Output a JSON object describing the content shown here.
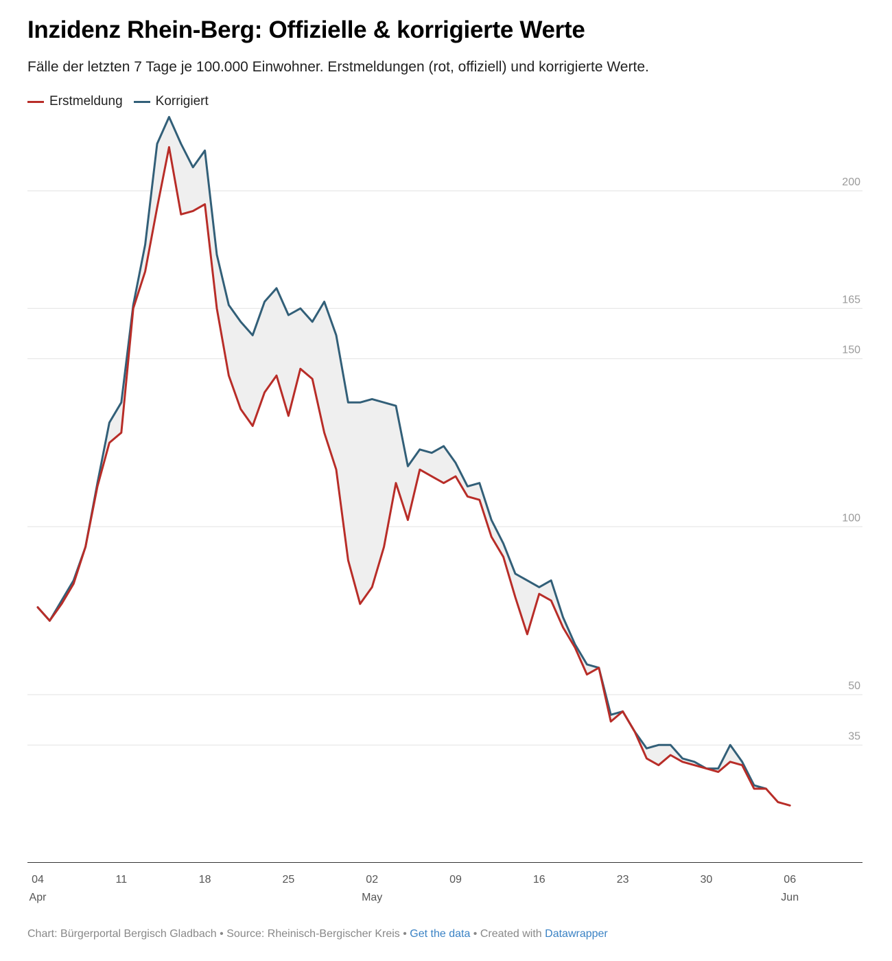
{
  "title": "Inzidenz Rhein-Berg: Offizielle & korrigierte Werte",
  "subtitle": "Fälle der letzten 7 Tage je 100.000 Einwohner. Erstmeldungen (rot, offiziell) und korrigierte Werte.",
  "colors": {
    "erstmeldung": "#b82d28",
    "korrigiert": "#325f78",
    "band": "#efefef",
    "grid": "#e2e2e2",
    "tick_text": "#9a9a9a",
    "axis": "#333333",
    "link": "#3a82c4"
  },
  "footer": {
    "chart_credit": "Chart: Bürgerportal Bergisch Gladbach",
    "source": "Source: Rheinisch-Bergischer Kreis",
    "get_data": "Get the data",
    "created_with": "Created with",
    "datawrapper": "Datawrapper",
    "separator": "•"
  },
  "chart_data": {
    "type": "line",
    "title": "Inzidenz Rhein-Berg: Offizielle & korrigierte Werte",
    "subtitle": "Fälle der letzten 7 Tage je 100.000 Einwohner. Erstmeldungen (rot, offiziell) und korrigierte Werte.",
    "xlabel": "",
    "ylabel": "",
    "ylim": [
      0,
      225
    ],
    "y_ticks": [
      35,
      50,
      100,
      150,
      165,
      200
    ],
    "grid": true,
    "legend_position": "top-left",
    "x_ticks": [
      {
        "date": "2021-04-04",
        "day": "04",
        "month": "Apr"
      },
      {
        "date": "2021-04-11",
        "day": "11",
        "month": ""
      },
      {
        "date": "2021-04-18",
        "day": "18",
        "month": ""
      },
      {
        "date": "2021-04-25",
        "day": "25",
        "month": ""
      },
      {
        "date": "2021-05-02",
        "day": "02",
        "month": "May"
      },
      {
        "date": "2021-05-09",
        "day": "09",
        "month": ""
      },
      {
        "date": "2021-05-16",
        "day": "16",
        "month": ""
      },
      {
        "date": "2021-05-23",
        "day": "23",
        "month": ""
      },
      {
        "date": "2021-05-30",
        "day": "30",
        "month": ""
      },
      {
        "date": "2021-06-06",
        "day": "06",
        "month": "Jun"
      }
    ],
    "start_date": "2021-04-04",
    "series": [
      {
        "name": "Erstmeldung",
        "color": "#b82d28",
        "values": [
          76,
          72,
          77,
          83,
          94,
          112,
          125,
          128,
          165,
          176,
          195,
          213,
          193,
          194,
          196,
          165,
          145,
          135,
          130,
          140,
          145,
          133,
          147,
          144,
          128,
          117,
          90,
          77,
          82,
          94,
          113,
          102,
          117,
          115,
          113,
          115,
          109,
          108,
          97,
          91,
          79,
          68,
          80,
          78,
          70,
          64,
          56,
          58,
          42,
          45,
          39,
          31,
          29,
          32,
          30,
          29,
          28,
          27,
          30,
          29,
          22,
          22,
          18,
          17
        ]
      },
      {
        "name": "Korrigiert",
        "color": "#325f78",
        "values": [
          76,
          72,
          78,
          84,
          94,
          113,
          131,
          137,
          166,
          184,
          214,
          222,
          214,
          207,
          212,
          181,
          166,
          161,
          157,
          167,
          171,
          163,
          165,
          161,
          167,
          157,
          137,
          137,
          138,
          137,
          136,
          118,
          123,
          122,
          124,
          119,
          112,
          113,
          102,
          95,
          86,
          84,
          82,
          84,
          73,
          65,
          59,
          58,
          44,
          45,
          39,
          34,
          35,
          35,
          31,
          30,
          28,
          28,
          35,
          30,
          23,
          22
        ]
      }
    ]
  }
}
